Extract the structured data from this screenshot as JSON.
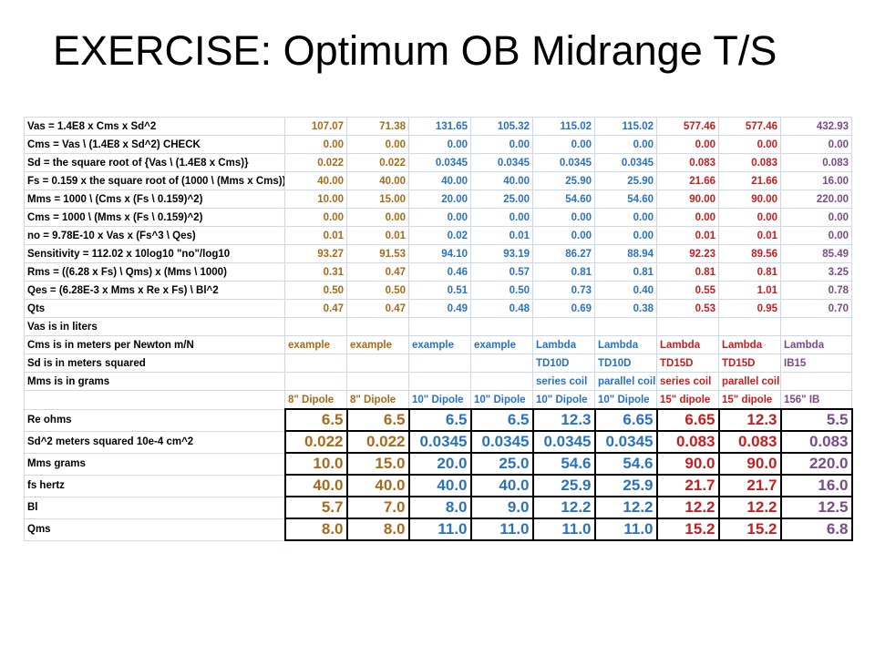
{
  "title": "EXERCISE:  Optimum OB Midrange T/S",
  "colors": {
    "brown": "#a86a1a",
    "blue": "#2a72c0",
    "red": "#c02020",
    "purple": "#7a4a8a"
  },
  "column_colors": [
    "brown",
    "brown",
    "blue",
    "blue",
    "blue",
    "blue",
    "red",
    "red",
    "purple"
  ],
  "formula_rows": [
    {
      "label": "Vas = 1.4E8 x Cms x Sd^2",
      "values": [
        "107.07",
        "71.38",
        "131.65",
        "105.32",
        "115.02",
        "115.02",
        "577.46",
        "577.46",
        "432.93"
      ]
    },
    {
      "label": "Cms = Vas \\ (1.4E8 x Sd^2)   CHECK",
      "values": [
        "0.00",
        "0.00",
        "0.00",
        "0.00",
        "0.00",
        "0.00",
        "0.00",
        "0.00",
        "0.00"
      ]
    },
    {
      "label": "Sd = the square root of {Vas \\ (1.4E8 x Cms)}",
      "values": [
        "0.022",
        "0.022",
        "0.0345",
        "0.0345",
        "0.0345",
        "0.0345",
        "0.083",
        "0.083",
        "0.083"
      ]
    },
    {
      "label": "Fs = 0.159 x the square root of (1000 \\ (Mms x Cms))",
      "values": [
        "40.00",
        "40.00",
        "40.00",
        "40.00",
        "25.90",
        "25.90",
        "21.66",
        "21.66",
        "16.00"
      ]
    },
    {
      "label": "Mms = 1000 \\ (Cms x (Fs \\ 0.159)^2)",
      "values": [
        "10.00",
        "15.00",
        "20.00",
        "25.00",
        "54.60",
        "54.60",
        "90.00",
        "90.00",
        "220.00"
      ]
    },
    {
      "label": "Cms = 1000 \\ (Mms x (Fs \\ 0.159)^2)",
      "values": [
        "0.00",
        "0.00",
        "0.00",
        "0.00",
        "0.00",
        "0.00",
        "0.00",
        "0.00",
        "0.00"
      ]
    },
    {
      "label": "no = 9.78E-10 x Vas x (Fs^3 \\ Qes)",
      "values": [
        "0.01",
        "0.01",
        "0.02",
        "0.01",
        "0.00",
        "0.00",
        "0.01",
        "0.01",
        "0.00"
      ]
    },
    {
      "label": "Sensitivity = 112.02 x 10log10 \"no\"/log10",
      "values": [
        "93.27",
        "91.53",
        "94.10",
        "93.19",
        "86.27",
        "88.94",
        "92.23",
        "89.56",
        "85.49"
      ]
    },
    {
      "label": "Rms = ((6.28 x Fs) \\ Qms) x (Mms \\ 1000)",
      "values": [
        "0.31",
        "0.47",
        "0.46",
        "0.57",
        "0.81",
        "0.81",
        "0.81",
        "0.81",
        "3.25"
      ]
    },
    {
      "label": "Qes = (6.28E-3 x Mms x Re x Fs) \\ Bl^2",
      "values": [
        "0.50",
        "0.50",
        "0.51",
        "0.50",
        "0.73",
        "0.40",
        "0.55",
        "1.01",
        "0.78"
      ]
    },
    {
      "label": "Qts",
      "values": [
        "0.47",
        "0.47",
        "0.49",
        "0.48",
        "0.69",
        "0.38",
        "0.53",
        "0.95",
        "0.70"
      ]
    }
  ],
  "note_rows": [
    {
      "label": "Vas is in liters",
      "values": [
        "",
        "",
        "",
        "",
        "",
        "",
        "",
        "",
        ""
      ]
    },
    {
      "label": "Cms is in meters per Newton m/N",
      "values": [
        "example",
        "example",
        "example",
        "example",
        "Lambda",
        "Lambda",
        "Lambda",
        "Lambda",
        "Lambda"
      ]
    },
    {
      "label": "Sd is in meters squared",
      "values": [
        "",
        "",
        "",
        "",
        "TD10D",
        "TD10D",
        "TD15D",
        "TD15D",
        "IB15"
      ]
    },
    {
      "label": "Mms is in grams",
      "values": [
        "",
        "",
        "",
        "",
        "series coil",
        "parallel coil",
        "series coil",
        "parallel coil",
        ""
      ]
    },
    {
      "label": "",
      "values": [
        "8\" Dipole",
        "8\" Dipole",
        "10\" Dipole",
        "10\" Dipole",
        "10\" Dipole",
        "10\" Dipole",
        "15\" dipole",
        "15\" dipole",
        "156\" IB"
      ]
    }
  ],
  "input_rows": [
    {
      "label": "Re ohms",
      "values": [
        "6.5",
        "6.5",
        "6.5",
        "6.5",
        "12.3",
        "6.65",
        "6.65",
        "12.3",
        "5.5"
      ]
    },
    {
      "label": "Sd^2  meters squared 10e-4 cm^2",
      "values": [
        "0.022",
        "0.022",
        "0.0345",
        "0.0345",
        "0.0345",
        "0.0345",
        "0.083",
        "0.083",
        "0.083"
      ]
    },
    {
      "label": "Mms  grams",
      "values": [
        "10.0",
        "15.0",
        "20.0",
        "25.0",
        "54.6",
        "54.6",
        "90.0",
        "90.0",
        "220.0"
      ]
    },
    {
      "label": "fs  hertz",
      "values": [
        "40.0",
        "40.0",
        "40.0",
        "40.0",
        "25.9",
        "25.9",
        "21.7",
        "21.7",
        "16.0"
      ]
    },
    {
      "label": "Bl",
      "values": [
        "5.7",
        "7.0",
        "8.0",
        "9.0",
        "12.2",
        "12.2",
        "12.2",
        "12.2",
        "12.5"
      ]
    },
    {
      "label": "Qms",
      "values": [
        "8.0",
        "8.0",
        "11.0",
        "11.0",
        "11.0",
        "11.0",
        "15.2",
        "15.2",
        "6.8"
      ]
    }
  ]
}
